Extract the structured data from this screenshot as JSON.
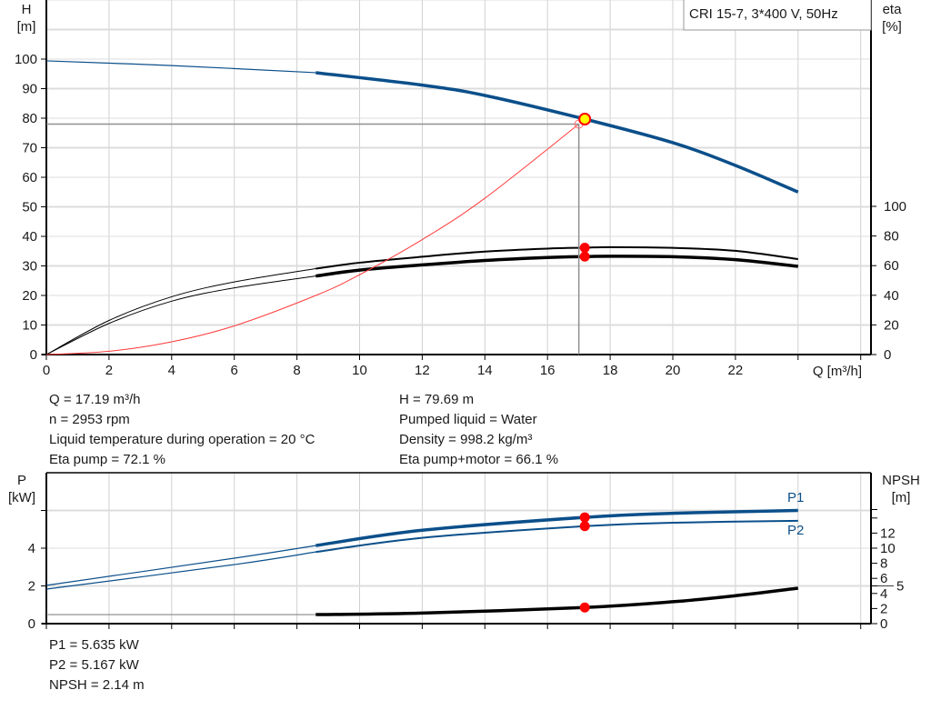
{
  "chart_data": [
    {
      "type": "line",
      "title": "CRI 15-7, 3*400 V, 50Hz",
      "xlabel": "Q [m³/h]",
      "ylabel_left": [
        "H",
        "[m]"
      ],
      "ylabel_right": [
        "eta",
        "[%]"
      ],
      "xlim": [
        0,
        26
      ],
      "ylim_left": [
        0,
        120
      ],
      "ylim_right": [
        0,
        100
      ],
      "x_ticks": [
        0,
        2,
        4,
        6,
        8,
        10,
        12,
        14,
        16,
        18,
        20,
        22
      ],
      "y_ticks_left": [
        0,
        10,
        20,
        30,
        40,
        50,
        60,
        70,
        80,
        90,
        100
      ],
      "y_ticks_right": [
        0,
        20,
        40,
        60,
        80,
        100
      ],
      "grid": true,
      "operating_range_q": [
        8.6,
        24
      ],
      "series": [
        {
          "key": "H",
          "axis": "left",
          "color": "#0b4f8a",
          "x": [
            0,
            4,
            8.6,
            12,
            14,
            17.19,
            20,
            22,
            24
          ],
          "y": [
            99.4,
            97.8,
            95.4,
            91.2,
            87.7,
            79.69,
            71.7,
            64.0,
            55.0
          ]
        },
        {
          "key": "eta_pump",
          "axis": "right",
          "color": "#000000",
          "x": [
            0,
            2,
            4,
            6,
            8.6,
            10,
            12,
            14,
            16,
            17.19,
            18,
            20,
            22,
            24
          ],
          "y": [
            0,
            23,
            39,
            49,
            58,
            62,
            66,
            69.5,
            71.5,
            72.1,
            72.5,
            72,
            70,
            64.4
          ]
        },
        {
          "key": "eta_pump_motor",
          "axis": "right",
          "color": "#000000",
          "x": [
            0,
            2,
            4,
            6,
            8.6,
            10,
            12,
            14,
            16,
            17.19,
            18,
            20,
            22,
            24
          ],
          "y": [
            0,
            21,
            36,
            45,
            53,
            57,
            60.5,
            63.5,
            65.5,
            66.1,
            66.3,
            66,
            64,
            59.5
          ]
        },
        {
          "key": "system_curve",
          "axis": "left",
          "color": "#ff3b3b",
          "x": [
            0,
            2,
            4,
            6,
            8.6,
            10,
            12,
            14,
            17.0
          ],
          "y": [
            0,
            1.1,
            4.3,
            9.7,
            20,
            27,
            38.9,
            52.9,
            78
          ]
        }
      ],
      "duty_point": {
        "Q": 17.19,
        "H": 79.69
      },
      "system_point": {
        "Q": 17.0,
        "H": 78
      },
      "colors": {
        "grid": "#d0d0d0",
        "duty_fill": "#ffff00",
        "marker": "#ff0000",
        "guide": "#909090"
      }
    },
    {
      "type": "line",
      "xlabel": "",
      "ylabel_left": [
        "P",
        "[kW]"
      ],
      "ylabel_right": [
        "NPSH",
        "[m]"
      ],
      "xlim": [
        0,
        26
      ],
      "ylim_left": [
        0,
        8
      ],
      "ylim_right": [
        0,
        20
      ],
      "y_ticks_left": [
        0,
        2,
        4
      ],
      "y_ticks_left_unlabeled": [
        6
      ],
      "y_ticks_right": [
        "0",
        "2",
        "4",
        "5",
        "6",
        "8",
        "10",
        "12"
      ],
      "y_ticks_right_values": [
        0,
        2,
        4,
        5,
        6,
        8,
        10,
        12
      ],
      "y_ticks_right_unlabeled": [
        14,
        15
      ],
      "grid": true,
      "operating_range_q": [
        8.6,
        24
      ],
      "series": [
        {
          "key": "P1",
          "name": "P1",
          "axis": "left",
          "color": "#0b4f8a",
          "x": [
            0,
            6,
            8.6,
            12,
            17.19,
            20,
            24
          ],
          "y": [
            2.03,
            3.47,
            4.14,
            4.95,
            5.635,
            5.85,
            6.0
          ]
        },
        {
          "key": "P2",
          "name": "P2",
          "axis": "left",
          "color": "#0b4f8a",
          "x": [
            0,
            6,
            8.6,
            12,
            17.19,
            20,
            24
          ],
          "y": [
            1.83,
            3.13,
            3.8,
            4.55,
            5.167,
            5.35,
            5.45
          ]
        },
        {
          "key": "NPSH",
          "axis": "right",
          "color": "#000000",
          "x": [
            0,
            8.6,
            12,
            17.19,
            20,
            22,
            24
          ],
          "y": [
            1.2,
            1.2,
            1.4,
            2.14,
            2.9,
            3.7,
            4.7
          ]
        }
      ],
      "duty_q": 17.19
    }
  ],
  "info": {
    "left": [
      "Q = 17.19 m³/h",
      "n = 2953 rpm",
      "Liquid temperature during operation = 20 °C",
      "Eta pump = 72.1 %"
    ],
    "right": [
      "H = 79.69 m",
      "Pumped liquid = Water",
      "Density = 998.2 kg/m³",
      "Eta pump+motor = 66.1 %"
    ],
    "bottom": [
      "P1 = 5.635 kW",
      "P2 = 5.167 kW",
      "NPSH = 2.14 m"
    ]
  }
}
